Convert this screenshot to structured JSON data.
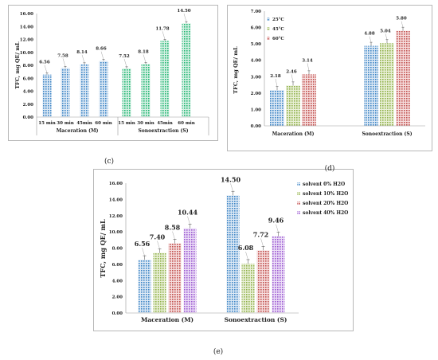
{
  "colors": {
    "blue": "#3d85c6",
    "green": "#8fb04a",
    "red": "#c0504d",
    "purple": "#9b59d0",
    "teal": "#22b573",
    "frame": "#b8b8b8",
    "leader": "#8a8a8a"
  },
  "chart_data": [
    {
      "panel": "(c)",
      "type": "bar",
      "caption": "(c)",
      "ylabel": "TFC, mg QE/ mL",
      "ylim": [
        0,
        16
      ],
      "yticks": [
        "0.00",
        "2.00",
        "4.00",
        "6.00",
        "8.00",
        "10.00",
        "12.00",
        "14.00",
        "16.00"
      ],
      "groups": [
        "Maceration (M)",
        "Sonoextraction (S)"
      ],
      "categories": [
        "15 min",
        "30 min",
        "45min",
        "60 min",
        "15 min",
        "30 min",
        "45min",
        "60 min"
      ],
      "values": [
        6.56,
        7.58,
        8.14,
        8.66,
        7.52,
        8.18,
        11.78,
        14.5
      ],
      "labels": [
        "6.56",
        "7.58",
        "8.14",
        "8.66",
        "7.52",
        "8.18",
        "11.78",
        "14.50"
      ],
      "grid": false,
      "legend": "none"
    },
    {
      "panel": "(d)",
      "type": "bar",
      "caption": "(d)",
      "ylabel": "TFC, mg QE/ mL",
      "ylim": [
        0,
        7
      ],
      "yticks": [
        "0.00",
        "1.00",
        "2.00",
        "3.00",
        "4.00",
        "5.00",
        "6.00",
        "7.00"
      ],
      "categories": [
        "Maceration (M)",
        "Sonoextraction (S)"
      ],
      "series": [
        {
          "name": "25°C",
          "values": [
            2.18,
            4.88
          ],
          "labels": [
            "2.18",
            "4.88"
          ]
        },
        {
          "name": "45°C",
          "values": [
            2.46,
            5.04
          ],
          "labels": [
            "2.46",
            "5.04"
          ]
        },
        {
          "name": "60°C",
          "values": [
            3.14,
            5.8
          ],
          "labels": [
            "3.14",
            "5.80"
          ]
        }
      ],
      "grid": false,
      "legend": "top-left"
    },
    {
      "panel": "(e)",
      "type": "bar",
      "caption": "(e)",
      "ylabel": "TFC, mg QE/ mL",
      "ylim": [
        0,
        16
      ],
      "yticks": [
        "0.00",
        "2.00",
        "4.00",
        "6.00",
        "8.00",
        "10.00",
        "12.00",
        "14.00",
        "16.00"
      ],
      "categories": [
        "Maceration (M)",
        "Sonoextraction (S)"
      ],
      "series": [
        {
          "name": "solvent 0% H2O",
          "values": [
            6.56,
            14.5
          ],
          "labels": [
            "6.56",
            "14.50"
          ]
        },
        {
          "name": "solvent 10% H2O",
          "values": [
            7.4,
            6.08
          ],
          "labels": [
            "7.40",
            "6.08"
          ]
        },
        {
          "name": "solvent 20% H2O",
          "values": [
            8.58,
            7.72
          ],
          "labels": [
            "8.58",
            "7.72"
          ]
        },
        {
          "name": "solvent 40% H2O",
          "values": [
            10.44,
            9.46
          ],
          "labels": [
            "10.44",
            "9.46"
          ]
        }
      ],
      "grid": false,
      "legend": "top-right"
    }
  ]
}
